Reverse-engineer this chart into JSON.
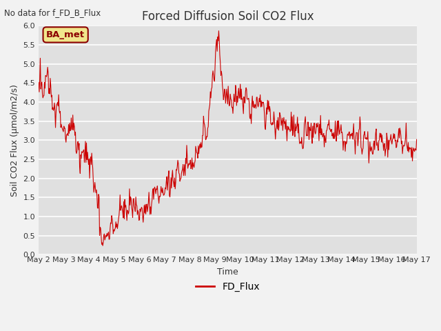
{
  "title": "Forced Diffusion Soil CO2 Flux",
  "xlabel": "Time",
  "ylabel": "Soil CO2 Flux (μmol/m2/s)",
  "note": "No data for f_FD_B_Flux",
  "legend_label": "FD_Flux",
  "line_color": "#cc0000",
  "bg_color": "#e0e0e0",
  "fig_bg_color": "#f2f2f2",
  "ylim": [
    0.0,
    6.0
  ],
  "yticks": [
    0.0,
    0.5,
    1.0,
    1.5,
    2.0,
    2.5,
    3.0,
    3.5,
    4.0,
    4.5,
    5.0,
    5.5,
    6.0
  ],
  "figsize": [
    6.4,
    4.8
  ],
  "dpi": 100,
  "ba_met_facecolor": "#f0e68c",
  "ba_met_edgecolor": "#8B0000",
  "ba_met_textcolor": "#8B0000"
}
